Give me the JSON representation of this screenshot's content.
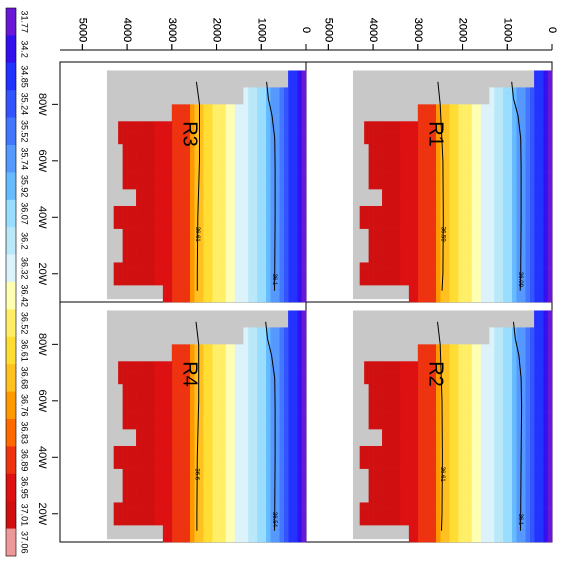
{
  "chart_data": {
    "type": "heatmap",
    "panels": [
      {
        "name": "R1",
        "label": "R1",
        "contour_labels": [
          "36.59",
          "36.09"
        ],
        "contour_deep": [
          [
            88,
            2550
          ],
          [
            80,
            2500
          ],
          [
            60,
            2440
          ],
          [
            40,
            2430
          ],
          [
            20,
            2440
          ],
          [
            14,
            2460
          ]
        ],
        "contour_shallow": [
          [
            88,
            900
          ],
          [
            82,
            860
          ],
          [
            76,
            760
          ],
          [
            68,
            700
          ],
          [
            58,
            690
          ],
          [
            40,
            690
          ],
          [
            20,
            700
          ],
          [
            14,
            710
          ]
        ]
      },
      {
        "name": "R2",
        "label": "R2",
        "contour_labels": [
          "36.61",
          "36.1"
        ],
        "contour_deep": [
          [
            88,
            2560
          ],
          [
            80,
            2500
          ],
          [
            60,
            2460
          ],
          [
            40,
            2450
          ],
          [
            20,
            2460
          ],
          [
            14,
            2470
          ]
        ],
        "contour_shallow": [
          [
            88,
            860
          ],
          [
            82,
            820
          ],
          [
            76,
            740
          ],
          [
            68,
            690
          ],
          [
            58,
            680
          ],
          [
            40,
            690
          ],
          [
            20,
            700
          ],
          [
            14,
            705
          ]
        ]
      },
      {
        "name": "R3",
        "label": "R3",
        "contour_labels": [
          "36.61",
          "36.1"
        ],
        "contour_deep": [
          [
            88,
            2450
          ],
          [
            80,
            2380
          ],
          [
            60,
            2380
          ],
          [
            40,
            2420
          ],
          [
            20,
            2430
          ],
          [
            14,
            2430
          ]
        ],
        "contour_shallow": [
          [
            88,
            880
          ],
          [
            82,
            840
          ],
          [
            76,
            760
          ],
          [
            68,
            700
          ],
          [
            58,
            690
          ],
          [
            40,
            690
          ],
          [
            20,
            700
          ],
          [
            14,
            705
          ]
        ]
      },
      {
        "name": "R4",
        "label": "R4",
        "contour_labels": [
          "36.6",
          "36.54"
        ],
        "contour_deep": [
          [
            88,
            2460
          ],
          [
            80,
            2400
          ],
          [
            60,
            2400
          ],
          [
            40,
            2430
          ],
          [
            20,
            2440
          ],
          [
            14,
            2440
          ]
        ],
        "contour_shallow": [
          [
            88,
            900
          ],
          [
            82,
            860
          ],
          [
            76,
            770
          ],
          [
            68,
            700
          ],
          [
            58,
            690
          ],
          [
            40,
            690
          ],
          [
            20,
            700
          ],
          [
            14,
            705
          ]
        ]
      }
    ],
    "x_axis": {
      "ticks": [
        "80W",
        "60W",
        "40W",
        "20W"
      ],
      "tick_values": [
        80,
        60,
        40,
        20
      ],
      "range": [
        95,
        10
      ]
    },
    "y_axis": {
      "ticks": [
        "0",
        "1000",
        "2000",
        "3000",
        "4000",
        "5000"
      ],
      "tick_values": [
        0,
        1000,
        2000,
        3000,
        4000,
        5000
      ],
      "range": [
        0,
        5500
      ]
    },
    "colorbar": {
      "labels": [
        "31.77",
        "34.2",
        "34.85",
        "35.24",
        "35.52",
        "35.74",
        "35.92",
        "36.07",
        "36.2",
        "36.32",
        "36.42",
        "36.52",
        "36.61",
        "36.68",
        "36.76",
        "36.83",
        "36.89",
        "36.95",
        "37.01",
        "37.06"
      ],
      "colors": [
        "#6a18d8",
        "#3311ee",
        "#2233ff",
        "#3355ff",
        "#4477ff",
        "#5599ff",
        "#66bbff",
        "#99ddff",
        "#bbe8f8",
        "#ddf3fb",
        "#ffffb3",
        "#ffee66",
        "#ffdd33",
        "#ffc020",
        "#ff9900",
        "#ff6a00",
        "#ee3311",
        "#dd1111",
        "#d01010",
        "#ee9999"
      ]
    },
    "missing_color": "#c8c8c8",
    "grid": false
  }
}
